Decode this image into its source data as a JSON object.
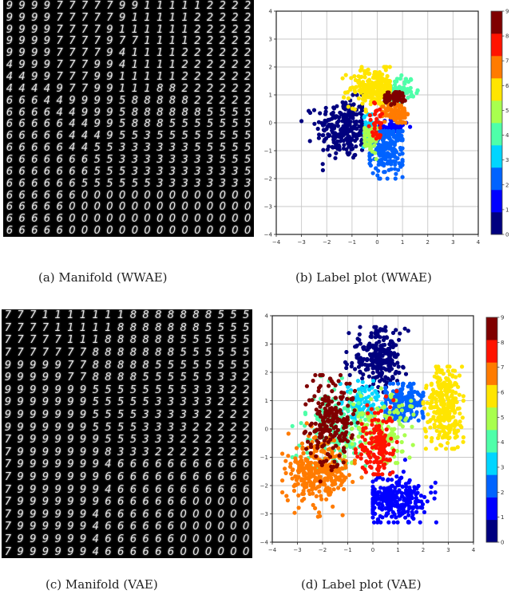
{
  "panels": {
    "a": {
      "caption": "(a) Manifold (WWAE)",
      "rows": [
        "99997777799/////22222",
        "9999777779/////222222",
        "999977779//////222222",
        "99997777977///1222222",
        "999977779411112222222",
        "4999777994111122222222",
        "44997779911111222222",
        "44449779911188222222",
        "66644999958888822222",
        "66664499958888885555",
        "66666449958885555555",
        "66666444955355555555",
        "66666445533333355555",
        "66666665533333333555",
        "66666665553333333335",
        "66666655555533333333",
        "66666600000000000000",
        "66666000000000000000",
        "66666000000000000000",
        "66666000000000000000"
      ]
    },
    "b": {
      "caption": "(b) Label plot (WWAE)"
    },
    "c": {
      "caption": "(c) Manifold (VAE)",
      "rows": [
        "77711111118888888555",
        "77771111188888885555",
        "77777111888888555555",
        "77777778888888555555",
        "99999778888855555555",
        "99999778888555555332",
        "99999995555555533322",
        "99999995555533333222",
        "99999995555333332222",
        "99999995555333322222",
        "79999999555333222222",
        "79999999833322222222",
        "79999999466666666666",
        "79999999666666666666",
        "79999999466666666666",
        "79999999666666600000",
        "79999994666666000000",
        "79999994666666000000",
        "79999994666666000000",
        "79999994666666000000"
      ]
    },
    "d": {
      "caption": "(d) Label plot (VAE)"
    }
  },
  "colormap": {
    "name": "jet",
    "labels": [
      "0",
      "1",
      "2",
      "3",
      "4",
      "5",
      "6",
      "7",
      "8",
      "9"
    ],
    "colors": [
      "#00007f",
      "#0000ff",
      "#0063ff",
      "#00d5ff",
      "#4effa9",
      "#a8ff4e",
      "#ffe500",
      "#ff7b00",
      "#ff1300",
      "#7f0000"
    ]
  },
  "chart_data": [
    {
      "type": "scatter",
      "title": "(b) Label plot (WWAE)",
      "xlabel": "",
      "ylabel": "",
      "xlim": [
        -4,
        4
      ],
      "ylim": [
        -4,
        4
      ],
      "xticks": [
        "-4",
        "-3",
        "-2",
        "-1",
        "0",
        "1",
        "2",
        "3",
        "4"
      ],
      "yticks": [
        "-4",
        "-3",
        "-2",
        "-1",
        "0",
        "1",
        "2",
        "3",
        "4"
      ],
      "grid": true,
      "colorbar": {
        "position": "right",
        "ticks": [
          "0",
          "1",
          "2",
          "3",
          "4",
          "5",
          "6",
          "7",
          "8",
          "9"
        ]
      },
      "clusters": [
        {
          "label": "0",
          "cx": -1.3,
          "cy": -0.2,
          "sx": 0.55,
          "sy": 0.55,
          "n": 260,
          "range_x": [
            -3.0,
            -0.6
          ],
          "range_y": [
            -1.7,
            1.0
          ]
        },
        {
          "label": "1",
          "cx": 0.6,
          "cy": -0.15,
          "sx": 0.35,
          "sy": 0.15,
          "n": 60,
          "range_x": [
            0.1,
            1.3
          ],
          "range_y": [
            -0.5,
            0.1
          ]
        },
        {
          "label": "2",
          "cx": 0.4,
          "cy": -1.0,
          "sx": 0.35,
          "sy": 0.45,
          "n": 200,
          "range_x": [
            -0.3,
            1.0
          ],
          "range_y": [
            -2.0,
            -0.3
          ]
        },
        {
          "label": "3",
          "cx": -0.3,
          "cy": -0.3,
          "sx": 0.12,
          "sy": 0.3,
          "n": 50,
          "range_x": [
            -0.6,
            0.0
          ],
          "range_y": [
            -0.9,
            0.3
          ]
        },
        {
          "label": "4",
          "cx": 0.9,
          "cy": 1.2,
          "sx": 0.3,
          "sy": 0.25,
          "n": 70,
          "range_x": [
            0.4,
            1.6
          ],
          "range_y": [
            0.7,
            1.7
          ]
        },
        {
          "label": "5",
          "cx": -0.25,
          "cy": -0.6,
          "sx": 0.15,
          "sy": 0.25,
          "n": 60,
          "range_x": [
            -0.5,
            0.0
          ],
          "range_y": [
            -1.3,
            0.2
          ]
        },
        {
          "label": "6",
          "cx": -0.1,
          "cy": 1.25,
          "sx": 0.5,
          "sy": 0.35,
          "n": 230,
          "range_x": [
            -1.4,
            0.5
          ],
          "range_y": [
            0.4,
            2.0
          ]
        },
        {
          "label": "7",
          "cx": 0.75,
          "cy": 0.35,
          "sx": 0.25,
          "sy": 0.2,
          "n": 110,
          "range_x": [
            0.2,
            1.2
          ],
          "range_y": [
            0.0,
            0.8
          ]
        },
        {
          "label": "8",
          "cx": 0.0,
          "cy": 0.0,
          "sx": 0.2,
          "sy": 0.35,
          "n": 30,
          "range_x": [
            -0.7,
            0.9
          ],
          "range_y": [
            -1.3,
            0.9
          ]
        },
        {
          "label": "9",
          "cx": 0.7,
          "cy": 0.9,
          "sx": 0.25,
          "sy": 0.12,
          "n": 60,
          "range_x": [
            0.3,
            1.1
          ],
          "range_y": [
            0.6,
            1.1
          ]
        }
      ]
    },
    {
      "type": "scatter",
      "title": "(d) Label plot (VAE)",
      "xlabel": "",
      "ylabel": "",
      "xlim": [
        -4,
        4
      ],
      "ylim": [
        -4,
        4
      ],
      "xticks": [
        "-4",
        "-3",
        "-2",
        "-1",
        "0",
        "1",
        "2",
        "3",
        "4"
      ],
      "yticks": [
        "-4",
        "-3",
        "-2",
        "-1",
        "0",
        "1",
        "2",
        "3",
        "4"
      ],
      "grid": true,
      "colorbar": {
        "position": "right",
        "ticks": [
          "0",
          "1",
          "2",
          "3",
          "4",
          "5",
          "6",
          "7",
          "8",
          "9"
        ]
      },
      "clusters": [
        {
          "label": "0",
          "cx": 0.2,
          "cy": 2.5,
          "sx": 0.55,
          "sy": 0.5,
          "n": 260,
          "range_x": [
            -1.8,
            2.4
          ],
          "range_y": [
            1.3,
            3.6
          ]
        },
        {
          "label": "1",
          "cx": 0.9,
          "cy": -2.5,
          "sx": 0.6,
          "sy": 0.4,
          "n": 280,
          "range_x": [
            0.0,
            2.6
          ],
          "range_y": [
            -3.3,
            -1.0
          ]
        },
        {
          "label": "2",
          "cx": 1.2,
          "cy": 0.9,
          "sx": 0.45,
          "sy": 0.35,
          "n": 200,
          "range_x": [
            0.5,
            2.0
          ],
          "range_y": [
            0.3,
            1.6
          ]
        },
        {
          "label": "3",
          "cx": -0.5,
          "cy": 0.9,
          "sx": 0.4,
          "sy": 0.35,
          "n": 100,
          "range_x": [
            -1.3,
            0.5
          ],
          "range_y": [
            -1.5,
            1.7
          ]
        },
        {
          "label": "4",
          "cx": -1.5,
          "cy": 0.0,
          "sx": 0.6,
          "sy": 0.7,
          "n": 180,
          "range_x": [
            -3.2,
            -0.3
          ],
          "range_y": [
            -1.5,
            2.0
          ]
        },
        {
          "label": "5",
          "cx": 0.3,
          "cy": 0.0,
          "sx": 0.6,
          "sy": 0.6,
          "n": 150,
          "range_x": [
            -1.2,
            2.0
          ],
          "range_y": [
            -1.2,
            2.0
          ]
        },
        {
          "label": "6",
          "cx": 2.8,
          "cy": 0.8,
          "sx": 0.35,
          "sy": 0.75,
          "n": 280,
          "range_x": [
            2.0,
            3.6
          ],
          "range_y": [
            -0.7,
            2.2
          ]
        },
        {
          "label": "7",
          "cx": -2.2,
          "cy": -1.4,
          "sx": 0.6,
          "sy": 0.6,
          "n": 320,
          "range_x": [
            -3.6,
            -0.4
          ],
          "range_y": [
            -3.1,
            0.2
          ]
        },
        {
          "label": "8",
          "cx": 0.2,
          "cy": -0.6,
          "sx": 0.35,
          "sy": 0.7,
          "n": 160,
          "range_x": [
            -0.8,
            1.1
          ],
          "range_y": [
            -1.6,
            1.5
          ]
        },
        {
          "label": "9",
          "cx": -1.7,
          "cy": 0.2,
          "sx": 0.45,
          "sy": 0.8,
          "n": 220,
          "range_x": [
            -2.8,
            -0.5
          ],
          "range_y": [
            -2.0,
            1.9
          ]
        }
      ]
    }
  ]
}
